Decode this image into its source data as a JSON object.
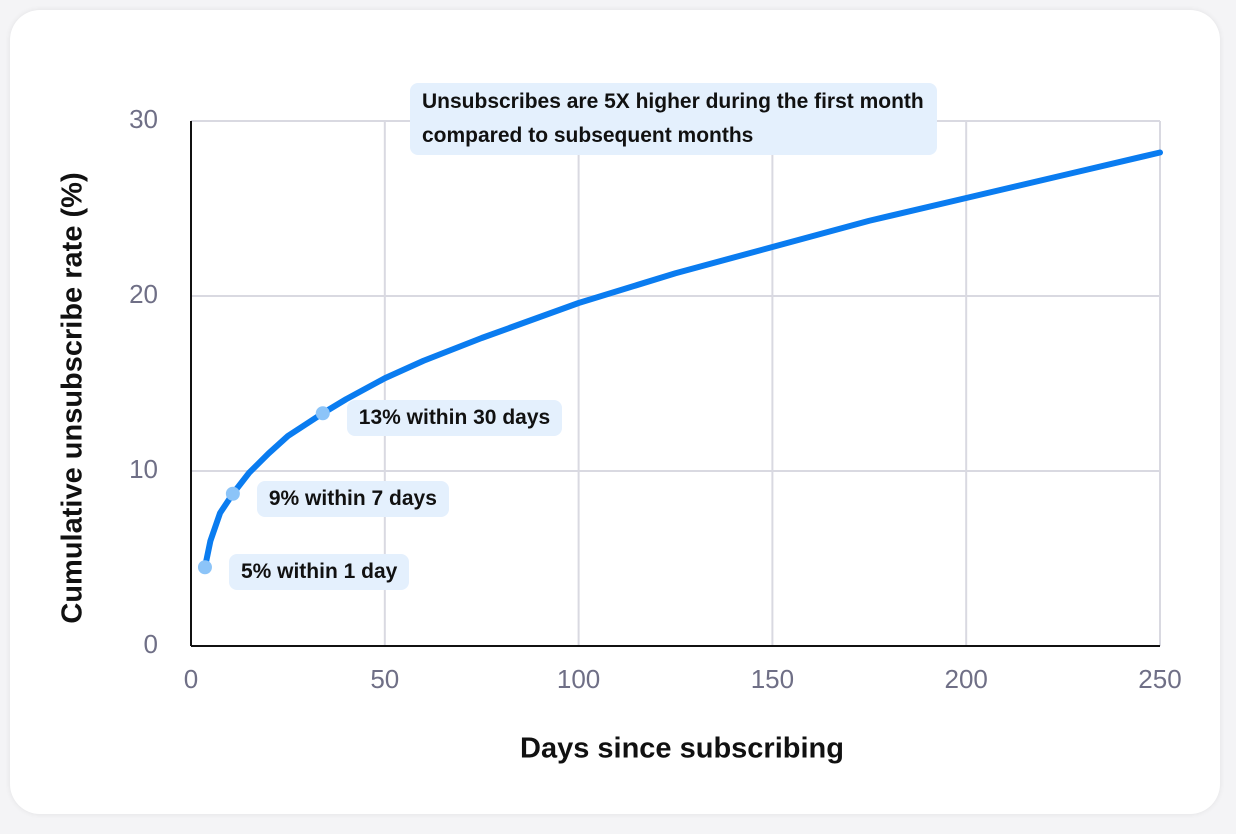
{
  "chart_data": {
    "type": "line",
    "x_label": "Days since subscribing",
    "y_label": "Cumulative unsubscribe rate (%)",
    "annotation": "Unsubscribes are 5X higher during the first month compared to subsequent months",
    "xlim": [
      0,
      250
    ],
    "xticks": [
      0,
      50,
      100,
      150,
      200,
      250
    ],
    "ylim": [
      0,
      30
    ],
    "yticks": [
      0,
      10,
      20,
      30
    ],
    "grid": true,
    "series": [
      {
        "color": "#0a7cf0",
        "x": [
          3.6,
          5,
          7.5,
          10.8,
          15,
          20,
          25,
          34,
          40,
          50,
          60,
          75,
          100,
          125,
          150,
          175,
          200,
          225,
          250
        ],
        "values": [
          4.5,
          6.0,
          7.6,
          8.7,
          9.9,
          11.0,
          12.0,
          13.3,
          14.1,
          15.3,
          16.3,
          17.6,
          19.6,
          21.3,
          22.8,
          24.3,
          25.6,
          26.9,
          28.2
        ]
      }
    ],
    "highlights": {
      "color": "#8cc4f8",
      "x": [
        3.6,
        10.8,
        34
      ],
      "values": [
        4.5,
        8.7,
        13.3
      ],
      "labels": [
        "5% within 1 day",
        "9% within 7 days",
        "13% within 30 days"
      ]
    }
  }
}
